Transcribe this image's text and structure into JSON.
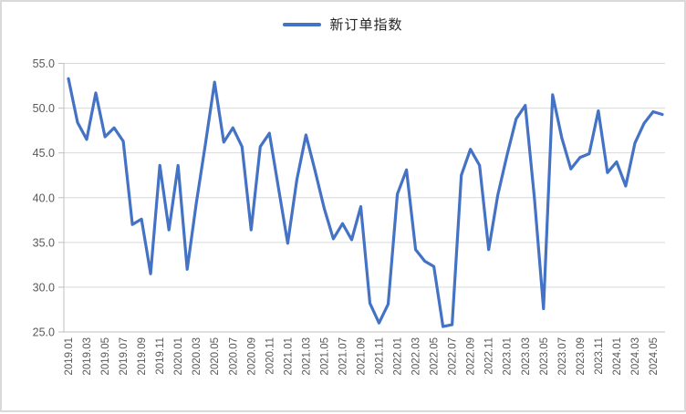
{
  "legend": {
    "label": "新订单指数"
  },
  "colors": {
    "series_line": "#4472C4",
    "gridline": "#d9d9d9",
    "axis_line": "#bfbfbf",
    "tick_label": "#595959",
    "chart_border": "#d9d9d9"
  },
  "chart_data": {
    "type": "line",
    "title": "",
    "legend_entries": [
      "新订单指数"
    ],
    "legend_position": "top",
    "grid": "horizontal",
    "ylim": [
      25.0,
      55.0
    ],
    "y_tick_step": 5.0,
    "y_tick_labels": [
      "55.0",
      "50.0",
      "45.0",
      "40.0",
      "35.0",
      "30.0",
      "25.0"
    ],
    "x_tick_labels": [
      "2019.01",
      "2019.03",
      "2019.05",
      "2019.07",
      "2019.09",
      "2019.11",
      "2020.01",
      "2020.03",
      "2020.05",
      "2020.07",
      "2020.09",
      "2020.11",
      "2021.01",
      "2021.03",
      "2021.05",
      "2021.07",
      "2021.09",
      "2021.11",
      "2022.01",
      "2022.03",
      "2022.05",
      "2022.07",
      "2022.09",
      "2022.11",
      "2023.01",
      "2023.03",
      "2023.05",
      "2023.07",
      "2023.09",
      "2023.11",
      "2024.01",
      "2024.03",
      "2024.05"
    ],
    "x": [
      "2019.01",
      "2019.02",
      "2019.03",
      "2019.04",
      "2019.05",
      "2019.06",
      "2019.07",
      "2019.08",
      "2019.09",
      "2019.10",
      "2019.11",
      "2019.12",
      "2020.01",
      "2020.02",
      "2020.03",
      "2020.04",
      "2020.05",
      "2020.06",
      "2020.07",
      "2020.08",
      "2020.09",
      "2020.10",
      "2020.11",
      "2020.12",
      "2021.01",
      "2021.02",
      "2021.03",
      "2021.04",
      "2021.05",
      "2021.06",
      "2021.07",
      "2021.08",
      "2021.09",
      "2021.10",
      "2021.11",
      "2021.12",
      "2022.01",
      "2022.02",
      "2022.03",
      "2022.04",
      "2022.05",
      "2022.06",
      "2022.07",
      "2022.08",
      "2022.09",
      "2022.10",
      "2022.11",
      "2022.12",
      "2023.01",
      "2023.02",
      "2023.03",
      "2023.04",
      "2023.05",
      "2023.06",
      "2023.07",
      "2023.08",
      "2023.09",
      "2023.10",
      "2023.11",
      "2023.12",
      "2024.01",
      "2024.02",
      "2024.03",
      "2024.04",
      "2024.05",
      "2024.06"
    ],
    "series": [
      {
        "name": "新订单指数",
        "values": [
          53.3,
          48.4,
          46.5,
          51.7,
          46.8,
          47.8,
          46.3,
          37.0,
          37.6,
          31.5,
          43.6,
          36.4,
          43.6,
          32.0,
          39.4,
          46.0,
          52.9,
          46.2,
          47.8,
          45.7,
          36.4,
          45.7,
          47.2,
          41.0,
          34.9,
          42.0,
          47.0,
          43.0,
          38.8,
          35.4,
          37.1,
          35.3,
          39.0,
          28.2,
          26.0,
          28.1,
          40.4,
          43.1,
          34.2,
          32.9,
          32.3,
          25.6,
          25.8,
          42.5,
          45.4,
          43.6,
          34.2,
          40.3,
          44.7,
          48.8,
          50.3,
          40.0,
          27.6,
          51.5,
          46.7,
          43.2,
          44.5,
          44.9,
          49.7,
          42.8,
          44.0,
          41.3,
          46.1,
          48.3,
          49.6,
          49.3
        ]
      }
    ]
  }
}
